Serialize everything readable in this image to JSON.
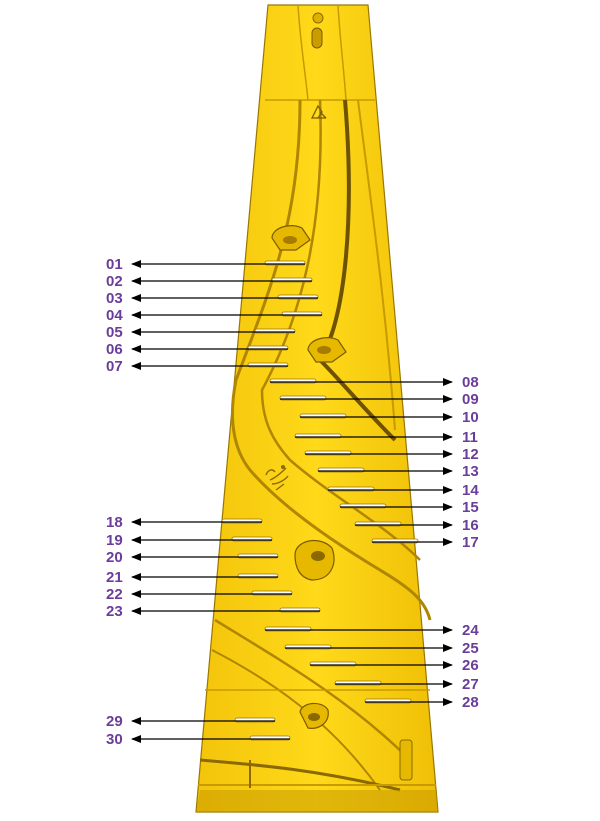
{
  "colors": {
    "part_fill": "#f5cf10",
    "part_shadow": "#c79a00",
    "part_edge": "#8a6a00",
    "label": "#6a3d9a",
    "arrow": "#000000"
  },
  "icons": {
    "logo": "stylized-letter-logo-icon",
    "mark": "jump-figure-icon"
  },
  "labels_left": [
    "01",
    "02",
    "03",
    "04",
    "05",
    "06",
    "07",
    "18",
    "19",
    "20",
    "21",
    "22",
    "23",
    "29",
    "30"
  ],
  "labels_right": [
    "08",
    "09",
    "10",
    "11",
    "12",
    "13",
    "14",
    "15",
    "16",
    "17",
    "24",
    "25",
    "26",
    "27",
    "28"
  ]
}
